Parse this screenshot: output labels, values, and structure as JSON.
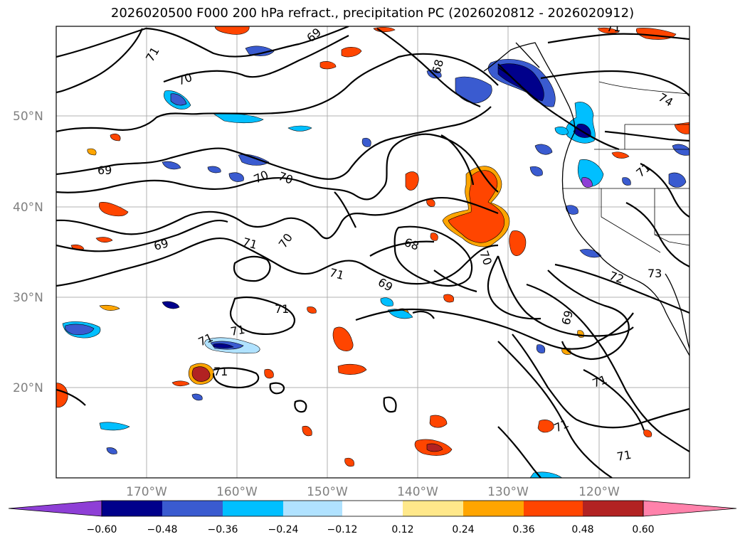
{
  "title": "2026020500 F000 200 hPa refract., precipitation PC (2026020812 - 2026020912)",
  "axes": {
    "lat_ticks": [
      "50°N",
      "40°N",
      "30°N",
      "20°N"
    ],
    "lon_ticks": [
      "170°W",
      "160°W",
      "150°W",
      "140°W",
      "130°W",
      "120°W"
    ]
  },
  "colorbar": {
    "ticks": [
      "−0.60",
      "−0.48",
      "−0.36",
      "−0.24",
      "−0.12",
      "0.12",
      "0.24",
      "0.36",
      "0.48",
      "0.60"
    ],
    "colors": [
      "#8e3fd6",
      "#00008b",
      "#3a5bd0",
      "#00bfff",
      "#b0e2ff",
      "#ffffff",
      "#ffe88a",
      "#ffa500",
      "#ff4500",
      "#b22222",
      "#ff82ab"
    ]
  },
  "contour_labels": [
    "71",
    "70",
    "69",
    "69",
    "70",
    "70",
    "71",
    "69",
    "70",
    "71",
    "69",
    "68",
    "70",
    "71",
    "71",
    "71",
    "71",
    "68",
    "74",
    "72",
    "73",
    "69",
    "71",
    "71",
    "71",
    "69",
    "71",
    "71"
  ]
}
